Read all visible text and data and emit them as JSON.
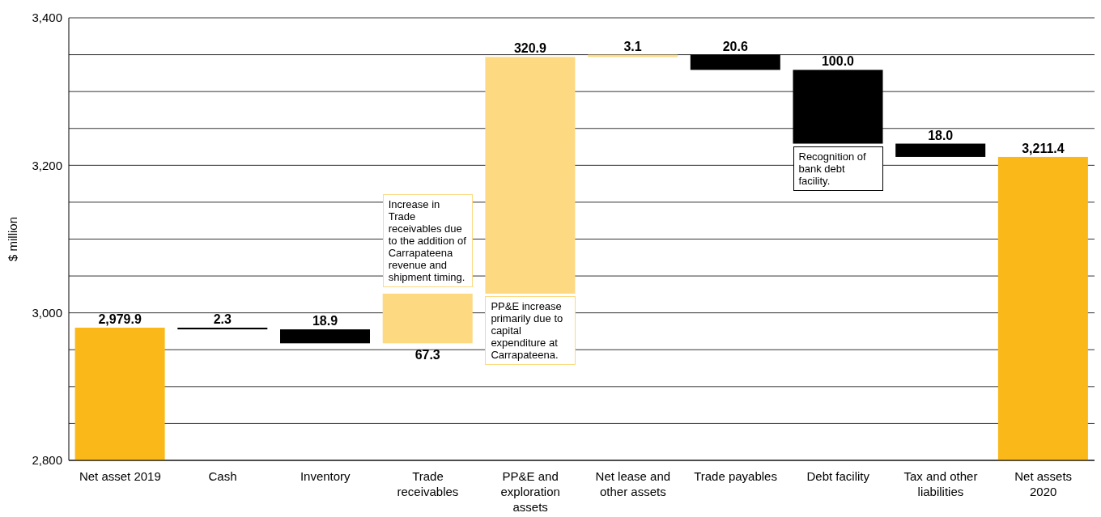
{
  "chart_data": {
    "type": "bar",
    "ylabel": "$ million",
    "categories": [
      "Net asset 2019",
      "Cash",
      "Inventory",
      "Trade receivables",
      "PP&E and exploration assets",
      "Net lease and other assets",
      "Trade payables",
      "Debt facility",
      "Tax and other liabilities",
      "Net assets 2020"
    ],
    "values": [
      2979.9,
      -2.3,
      -18.9,
      67.3,
      320.9,
      3.1,
      -20.6,
      -100.0,
      -18.0,
      3211.4
    ],
    "base": [
      0,
      2979.9,
      2977.6,
      2958.7,
      3026.0,
      3346.9,
      3350.0,
      3329.4,
      3229.4,
      0
    ],
    "colors": [
      "#fbb919",
      "#000000",
      "#000000",
      "#fdd982",
      "#fdd982",
      "#fdd982",
      "#000000",
      "#000000",
      "#000000",
      "#fbb919"
    ],
    "value_labels": [
      "2,979.9",
      "2.3",
      "18.9",
      "67.3",
      "320.9",
      "3.1",
      "20.6",
      "100.0",
      "18.0",
      "3,211.4"
    ],
    "ylim": [
      2800,
      3400
    ],
    "yticks": [
      {
        "value": 2800,
        "label": "2,800"
      },
      {
        "value": 2850,
        "label": null
      },
      {
        "value": 2900,
        "label": null
      },
      {
        "value": 2950,
        "label": null
      },
      {
        "value": 3000,
        "label": "3,000"
      },
      {
        "value": 3050,
        "label": null
      },
      {
        "value": 3100,
        "label": null
      },
      {
        "value": 3150,
        "label": null
      },
      {
        "value": 3200,
        "label": "3,200"
      },
      {
        "value": 3250,
        "label": null
      },
      {
        "value": 3300,
        "label": null
      },
      {
        "value": 3350,
        "label": null
      },
      {
        "value": 3400,
        "label": "3,400"
      }
    ],
    "grid": "y",
    "annotations": [
      {
        "text": "Increase in Trade receivables due to the addition of Carrapateena revenue and shipment timing.",
        "x": "Trade receivables",
        "y": 3026.0
      },
      {
        "text": "PP&E increase primarily due to capital expenditure at Carrapateena.",
        "x": "PP&E and exploration assets",
        "y": 3026.0
      },
      {
        "text": "Recognition of bank debt facility.",
        "x": "Debt facility",
        "y": 3229.4
      }
    ]
  }
}
